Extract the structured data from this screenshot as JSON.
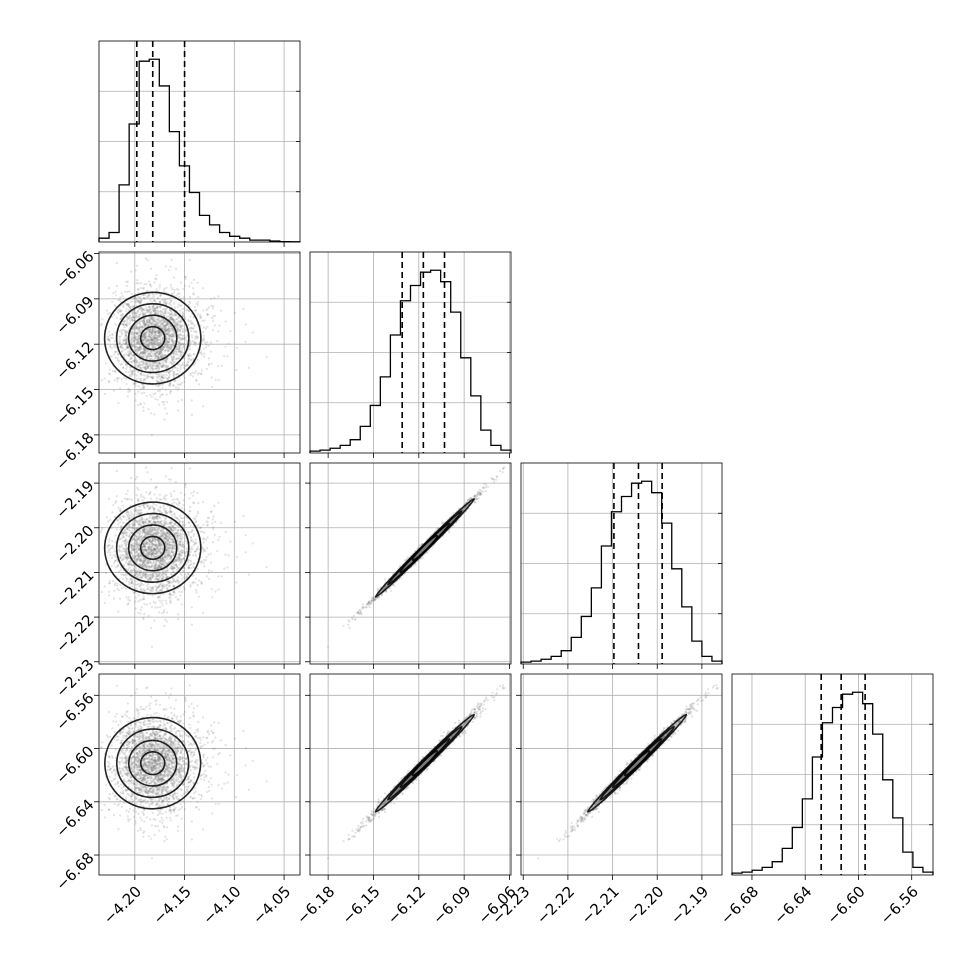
{
  "chart_data": {
    "type": "corner",
    "grid": true,
    "parameters": [
      {
        "ticks": [
          -4.2,
          -4.15,
          -4.1,
          -4.05
        ],
        "tick_labels": [
          "−4.20",
          "−4.15",
          "−4.10",
          "−4.05"
        ],
        "range": [
          -4.236,
          -4.034
        ],
        "mean": -4.182,
        "sd": 0.022,
        "quantiles": [
          -4.198,
          -4.182,
          -4.15
        ],
        "hist_counts": [
          2,
          5,
          30,
          62,
          95,
          96,
          82,
          58,
          40,
          26,
          14,
          9,
          5,
          3,
          2,
          1,
          1,
          0.5,
          0.2,
          0.1
        ]
      },
      {
        "ticks": [
          -6.18,
          -6.15,
          -6.12,
          -6.09,
          -6.06
        ],
        "tick_labels": [
          "−6.18",
          "−6.15",
          "−6.12",
          "−6.09",
          "−6.06"
        ],
        "range": [
          -6.192,
          -6.059
        ],
        "mean": -6.116,
        "sd": 0.016,
        "quantiles": [
          -6.131,
          -6.117,
          -6.103
        ],
        "hist_counts": [
          1,
          1.5,
          2.5,
          4,
          7,
          14,
          25,
          40,
          62,
          80,
          88,
          95,
          96,
          90,
          74,
          50,
          30,
          12,
          4,
          1.5
        ]
      },
      {
        "ticks": [
          -2.23,
          -2.22,
          -2.21,
          -2.2,
          -2.19
        ],
        "tick_labels": [
          "−2.23",
          "−2.22",
          "−2.21",
          "−2.20",
          "−2.19"
        ],
        "range": [
          -2.2305,
          -2.1855
        ],
        "mean": -2.2045,
        "sd": 0.0054,
        "quantiles": [
          -2.2097,
          -2.2042,
          -2.1989
        ],
        "hist_counts": [
          1,
          1.5,
          2.5,
          4,
          7,
          14,
          25,
          40,
          62,
          80,
          88,
          95,
          96,
          90,
          74,
          50,
          30,
          12,
          4,
          1.5
        ]
      },
      {
        "ticks": [
          -6.68,
          -6.64,
          -6.6,
          -6.56
        ],
        "tick_labels": [
          "−6.68",
          "−6.64",
          "−6.60",
          "−6.56"
        ],
        "range": [
          -6.695,
          -6.544
        ],
        "mean": -6.611,
        "sd": 0.018,
        "quantiles": [
          -6.628,
          -6.613,
          -6.595
        ],
        "hist_counts": [
          1,
          1.5,
          2.5,
          4,
          7,
          14,
          25,
          40,
          62,
          80,
          88,
          95,
          96,
          90,
          74,
          50,
          30,
          12,
          4,
          1.5
        ]
      }
    ],
    "correlations": {
      "1-0": 0.05,
      "2-0": 0.05,
      "3-0": 0.05,
      "2-1": 0.997,
      "3-1": 0.995,
      "3-2": 0.995
    },
    "contour_levels": [
      0.5,
      1.0,
      1.5,
      2.0
    ]
  }
}
